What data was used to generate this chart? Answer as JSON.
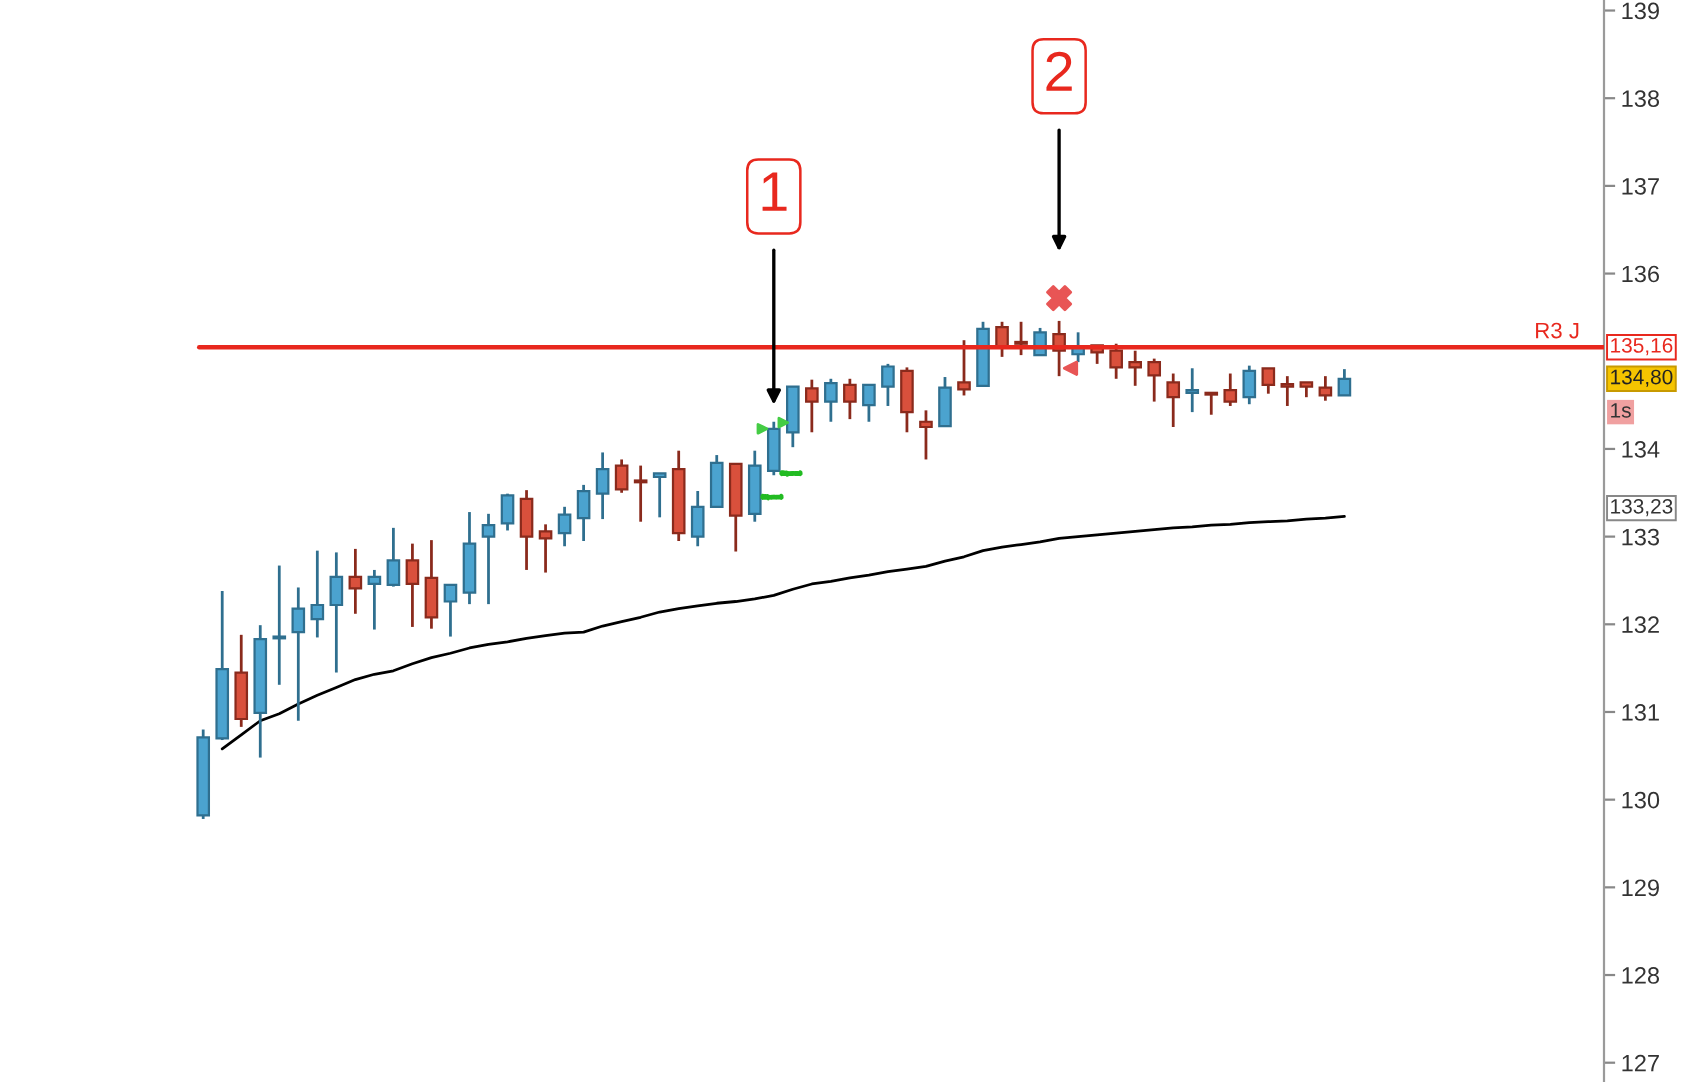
{
  "chart_data": {
    "type": "candlestick",
    "categories": [
      null,
      null,
      null,
      null,
      null,
      null,
      null,
      null,
      null,
      null,
      null,
      null,
      null,
      null,
      null,
      null,
      null,
      null,
      null,
      null,
      null,
      null,
      null,
      null,
      null,
      null,
      null,
      null,
      null,
      null,
      null,
      null,
      null,
      null,
      null,
      null,
      null,
      null,
      null,
      null,
      null,
      null,
      null,
      null,
      null,
      null,
      null,
      null,
      null,
      null,
      null,
      null,
      null,
      null,
      null,
      null,
      null,
      null,
      null,
      null,
      null
    ],
    "ohlc": [
      [
        129.82,
        130.8,
        129.78,
        130.71
      ],
      [
        130.7,
        132.38,
        130.68,
        131.49
      ],
      [
        131.45,
        131.88,
        130.83,
        130.92
      ],
      [
        130.99,
        131.99,
        130.48,
        131.83
      ],
      [
        131.84,
        132.67,
        131.31,
        131.86
      ],
      [
        131.91,
        132.42,
        130.9,
        132.18
      ],
      [
        132.06,
        132.84,
        131.85,
        132.22
      ],
      [
        132.22,
        132.82,
        131.45,
        132.54
      ],
      [
        132.54,
        132.86,
        132.12,
        132.41
      ],
      [
        132.46,
        132.62,
        131.94,
        132.54
      ],
      [
        132.45,
        133.1,
        132.43,
        132.73
      ],
      [
        132.73,
        132.92,
        131.97,
        132.46
      ],
      [
        132.53,
        132.96,
        131.95,
        132.08
      ],
      [
        132.26,
        132.45,
        131.86,
        132.45
      ],
      [
        132.36,
        133.28,
        132.23,
        132.92
      ],
      [
        133.0,
        133.26,
        132.23,
        133.13
      ],
      [
        133.15,
        133.49,
        133.07,
        133.47
      ],
      [
        133.43,
        133.53,
        132.62,
        133.0
      ],
      [
        133.06,
        133.14,
        132.59,
        132.98
      ],
      [
        133.04,
        133.34,
        132.89,
        133.25
      ],
      [
        133.21,
        133.59,
        132.95,
        133.52
      ],
      [
        133.49,
        133.96,
        133.2,
        133.77
      ],
      [
        133.81,
        133.88,
        133.5,
        133.54
      ],
      [
        133.64,
        133.81,
        133.17,
        133.62
      ],
      [
        133.68,
        133.72,
        133.22,
        133.72
      ],
      [
        133.77,
        133.98,
        132.95,
        133.04
      ],
      [
        133.0,
        133.52,
        132.89,
        133.34
      ],
      [
        133.34,
        133.93,
        133.34,
        133.84
      ],
      [
        133.83,
        133.83,
        132.83,
        133.24
      ],
      [
        133.26,
        133.98,
        133.17,
        133.81
      ],
      [
        133.75,
        134.31,
        133.7,
        134.23
      ],
      [
        134.19,
        134.71,
        134.02,
        134.71
      ],
      [
        134.69,
        134.79,
        134.19,
        134.54
      ],
      [
        134.54,
        134.8,
        134.31,
        134.75
      ],
      [
        134.73,
        134.8,
        134.34,
        134.54
      ],
      [
        134.5,
        134.73,
        134.31,
        134.73
      ],
      [
        134.71,
        134.97,
        134.49,
        134.94
      ],
      [
        134.89,
        134.93,
        134.19,
        134.42
      ],
      [
        134.31,
        134.44,
        133.88,
        134.25
      ],
      [
        134.26,
        134.82,
        134.26,
        134.7
      ],
      [
        134.76,
        135.24,
        134.61,
        134.68
      ],
      [
        134.72,
        135.45,
        134.72,
        135.37
      ],
      [
        135.39,
        135.45,
        135.05,
        135.16
      ],
      [
        135.22,
        135.45,
        135.07,
        135.2
      ],
      [
        135.07,
        135.38,
        135.07,
        135.33
      ],
      [
        135.31,
        135.46,
        134.83,
        135.12
      ],
      [
        135.08,
        135.33,
        134.99,
        135.16
      ],
      [
        135.18,
        135.18,
        134.97,
        135.1
      ],
      [
        135.12,
        135.2,
        134.8,
        134.93
      ],
      [
        134.99,
        135.12,
        134.72,
        134.93
      ],
      [
        134.99,
        135.03,
        134.54,
        134.84
      ],
      [
        134.76,
        134.86,
        134.25,
        134.59
      ],
      [
        134.64,
        134.92,
        134.42,
        134.67
      ],
      [
        134.64,
        134.64,
        134.39,
        134.62
      ],
      [
        134.67,
        134.86,
        134.49,
        134.54
      ],
      [
        134.59,
        134.95,
        134.51,
        134.89
      ],
      [
        134.92,
        134.92,
        134.63,
        134.73
      ],
      [
        134.74,
        134.83,
        134.49,
        134.71
      ],
      [
        134.76,
        134.76,
        134.59,
        134.71
      ],
      [
        134.7,
        134.83,
        134.55,
        134.61
      ],
      [
        134.61,
        134.91,
        134.61,
        134.8
      ]
    ],
    "colors": [
      "#4ba3cf",
      "#4ba3cf",
      "#d9503c",
      "#4ba3cf",
      "#4ba3cf",
      "#4ba3cf",
      "#4ba3cf",
      "#4ba3cf",
      "#d9503c",
      "#4ba3cf",
      "#4ba3cf",
      "#d9503c",
      "#d9503c",
      "#4ba3cf",
      "#4ba3cf",
      "#4ba3cf",
      "#4ba3cf",
      "#d9503c",
      "#d9503c",
      "#4ba3cf",
      "#4ba3cf",
      "#4ba3cf",
      "#d9503c",
      "#d9503c",
      "#4ba3cf",
      "#d9503c",
      "#4ba3cf",
      "#4ba3cf",
      "#d9503c",
      "#4ba3cf",
      "#4ba3cf",
      "#4ba3cf",
      "#d9503c",
      "#4ba3cf",
      "#d9503c",
      "#4ba3cf",
      "#4ba3cf",
      "#d9503c",
      "#d9503c",
      "#4ba3cf",
      "#d9503c",
      "#4ba3cf",
      "#d9503c",
      "#d9503c",
      "#4ba3cf",
      "#d9503c",
      "#4ba3cf",
      "#d9503c",
      "#d9503c",
      "#d9503c",
      "#d9503c",
      "#d9503c",
      "#4ba3cf",
      "#d9503c",
      "#d9503c",
      "#4ba3cf",
      "#d9503c",
      "#d9503c",
      "#d9503c",
      "#d9503c",
      "#4ba3cf"
    ],
    "series": [
      {
        "type": "line",
        "color": "#000000",
        "values": [
          null,
          130.58,
          130.74,
          130.9,
          130.98,
          131.09,
          131.19,
          131.28,
          131.37,
          131.43,
          131.47,
          131.55,
          131.62,
          131.67,
          131.73,
          131.77,
          131.8,
          131.84,
          131.87,
          131.9,
          131.91,
          131.98,
          132.03,
          132.08,
          132.14,
          132.18,
          132.21,
          132.24,
          132.26,
          132.29,
          132.33,
          132.4,
          132.46,
          132.49,
          132.53,
          132.56,
          132.6,
          132.63,
          132.66,
          132.72,
          132.77,
          132.84,
          132.88,
          132.91,
          132.94,
          132.98,
          133.0,
          133.02,
          133.04,
          133.06,
          133.08,
          133.1,
          133.11,
          133.13,
          133.14,
          133.16,
          133.17,
          133.18,
          133.2,
          133.21,
          133.23
        ]
      }
    ],
    "ylim": [
      126.78,
      139.12
    ],
    "yticks": [
      127,
      128,
      129,
      130,
      131,
      132,
      133,
      134,
      136,
      137,
      138,
      139
    ],
    "tick_labels": "y",
    "ref_lines": [
      {
        "axis": "y",
        "value": 135.16,
        "label": "R3 J",
        "color": "#e8281e"
      }
    ],
    "annotations": [
      "1",
      "2",
      "135,16",
      "134,80",
      "1s",
      "133,23"
    ],
    "grid": false
  }
}
